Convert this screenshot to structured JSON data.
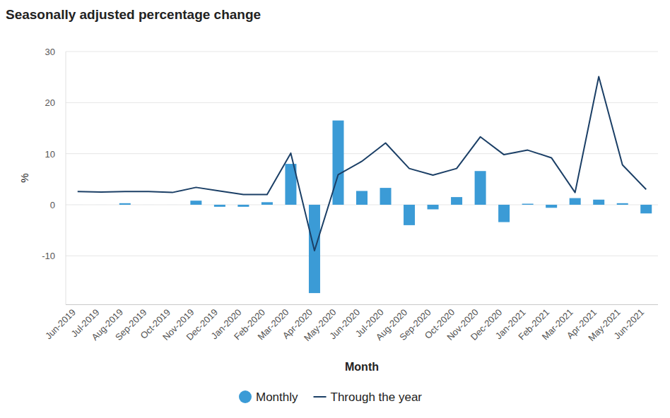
{
  "chart_data": {
    "type": "bar",
    "title": "Seasonally adjusted percentage change",
    "x_label": "Month",
    "y_label": "%",
    "categories": [
      "Jun-2019",
      "Jul-2019",
      "Aug-2019",
      "Sep-2019",
      "Oct-2019",
      "Nov-2019",
      "Dec-2019",
      "Jan-2020",
      "Feb-2020",
      "Mar-2020",
      "Apr-2020",
      "May-2020",
      "Jun-2020",
      "Jul-2020",
      "Aug-2020",
      "Sep-2020",
      "Oct-2020",
      "Nov-2020",
      "Dec-2020",
      "Jan-2021",
      "Feb-2021",
      "Mar-2021",
      "Apr-2021",
      "May-2021",
      "Jun-2021"
    ],
    "series": [
      {
        "name": "Monthly",
        "type": "bar",
        "color": "#3b9bd6",
        "values": [
          0.0,
          0.0,
          0.3,
          0.0,
          0.0,
          0.8,
          -0.4,
          -0.4,
          0.5,
          8.0,
          -17.3,
          16.5,
          2.7,
          3.3,
          -4.0,
          -0.9,
          1.5,
          6.6,
          -3.4,
          0.2,
          -0.6,
          1.3,
          1.0,
          0.3,
          -1.7
        ]
      },
      {
        "name": "Through the year",
        "type": "line",
        "color": "#1b3f66",
        "values": [
          2.6,
          2.5,
          2.6,
          2.6,
          2.4,
          3.4,
          2.7,
          2.0,
          2.0,
          10.1,
          -9.0,
          5.9,
          8.5,
          12.1,
          7.1,
          5.8,
          7.1,
          13.3,
          9.8,
          10.7,
          9.2,
          2.4,
          25.1,
          7.8,
          3.0
        ]
      }
    ],
    "ylim": [
      -19.5,
      30
    ],
    "yticks": [
      -10,
      0,
      10,
      20,
      30
    ],
    "grid": true,
    "legend": "bottom"
  }
}
